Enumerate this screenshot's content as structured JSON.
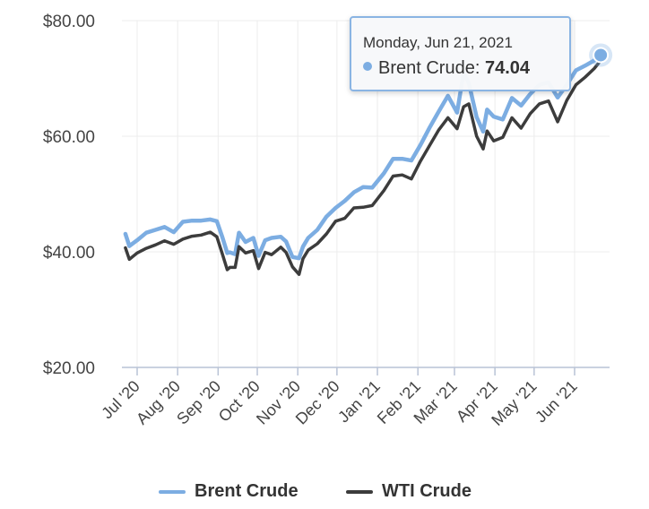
{
  "chart_data": {
    "type": "line",
    "title": "",
    "xlabel": "",
    "ylabel": "",
    "ylim": [
      20,
      80
    ],
    "y_ticks": [
      "$20.00",
      "$40.00",
      "$60.00",
      "$80.00"
    ],
    "y_tick_values": [
      20,
      40,
      60,
      80
    ],
    "x_ticks": [
      "Jul '20",
      "Aug '20",
      "Sep '20",
      "Oct '20",
      "Nov '20",
      "Dec '20",
      "Jan '21",
      "Feb '21",
      "Mar '21",
      "Apr '21",
      "May '21",
      "Jun '21"
    ],
    "x_tick_dates": [
      "2020-07-01",
      "2020-08-01",
      "2020-09-01",
      "2020-10-01",
      "2020-11-01",
      "2020-12-01",
      "2021-01-01",
      "2021-02-01",
      "2021-03-01",
      "2021-04-01",
      "2021-05-01",
      "2021-06-01"
    ],
    "grid": true,
    "legend_position": "bottom-center",
    "series": [
      {
        "name": "Brent Crude",
        "color": "#7cade2",
        "points": [
          [
            "2020-06-22",
            43.1
          ],
          [
            "2020-06-25",
            41.0
          ],
          [
            "2020-07-01",
            42.0
          ],
          [
            "2020-07-08",
            43.3
          ],
          [
            "2020-07-15",
            43.8
          ],
          [
            "2020-07-22",
            44.3
          ],
          [
            "2020-07-29",
            43.4
          ],
          [
            "2020-08-05",
            45.2
          ],
          [
            "2020-08-12",
            45.4
          ],
          [
            "2020-08-19",
            45.4
          ],
          [
            "2020-08-26",
            45.6
          ],
          [
            "2020-08-31",
            45.3
          ],
          [
            "2020-09-04",
            42.7
          ],
          [
            "2020-09-08",
            39.8
          ],
          [
            "2020-09-10",
            39.9
          ],
          [
            "2020-09-14",
            39.6
          ],
          [
            "2020-09-17",
            43.3
          ],
          [
            "2020-09-22",
            41.7
          ],
          [
            "2020-09-28",
            42.4
          ],
          [
            "2020-10-02",
            39.3
          ],
          [
            "2020-10-07",
            42.0
          ],
          [
            "2020-10-12",
            42.4
          ],
          [
            "2020-10-19",
            42.6
          ],
          [
            "2020-10-23",
            41.8
          ],
          [
            "2020-10-28",
            39.1
          ],
          [
            "2020-11-02",
            38.9
          ],
          [
            "2020-11-05",
            40.9
          ],
          [
            "2020-11-09",
            42.4
          ],
          [
            "2020-11-16",
            43.8
          ],
          [
            "2020-11-23",
            46.1
          ],
          [
            "2020-11-30",
            47.6
          ],
          [
            "2020-12-07",
            48.8
          ],
          [
            "2020-12-14",
            50.3
          ],
          [
            "2020-12-21",
            51.2
          ],
          [
            "2020-12-28",
            51.1
          ],
          [
            "2021-01-06",
            53.6
          ],
          [
            "2021-01-13",
            56.1
          ],
          [
            "2021-01-20",
            56.1
          ],
          [
            "2021-01-27",
            55.8
          ],
          [
            "2021-02-03",
            58.5
          ],
          [
            "2021-02-10",
            61.5
          ],
          [
            "2021-02-17",
            64.3
          ],
          [
            "2021-02-24",
            67.0
          ],
          [
            "2021-03-03",
            64.1
          ],
          [
            "2021-03-08",
            71.0
          ],
          [
            "2021-03-12",
            69.2
          ],
          [
            "2021-03-18",
            63.3
          ],
          [
            "2021-03-23",
            60.8
          ],
          [
            "2021-03-26",
            64.6
          ],
          [
            "2021-03-31",
            63.4
          ],
          [
            "2021-04-07",
            62.9
          ],
          [
            "2021-04-14",
            66.6
          ],
          [
            "2021-04-21",
            65.3
          ],
          [
            "2021-04-28",
            67.3
          ],
          [
            "2021-05-05",
            68.9
          ],
          [
            "2021-05-12",
            69.3
          ],
          [
            "2021-05-19",
            66.7
          ],
          [
            "2021-05-26",
            68.9
          ],
          [
            "2021-06-02",
            71.4
          ],
          [
            "2021-06-09",
            72.2
          ],
          [
            "2021-06-16",
            73.1
          ],
          [
            "2021-06-21",
            74.04
          ]
        ]
      },
      {
        "name": "WTI Crude",
        "color": "#3c3c3c",
        "points": [
          [
            "2020-06-22",
            40.7
          ],
          [
            "2020-06-25",
            38.7
          ],
          [
            "2020-07-01",
            39.8
          ],
          [
            "2020-07-08",
            40.6
          ],
          [
            "2020-07-15",
            41.2
          ],
          [
            "2020-07-22",
            41.9
          ],
          [
            "2020-07-29",
            41.3
          ],
          [
            "2020-08-05",
            42.2
          ],
          [
            "2020-08-12",
            42.7
          ],
          [
            "2020-08-19",
            42.9
          ],
          [
            "2020-08-26",
            43.4
          ],
          [
            "2020-08-31",
            42.6
          ],
          [
            "2020-09-04",
            39.8
          ],
          [
            "2020-09-08",
            36.9
          ],
          [
            "2020-09-10",
            37.3
          ],
          [
            "2020-09-14",
            37.3
          ],
          [
            "2020-09-17",
            40.9
          ],
          [
            "2020-09-22",
            39.8
          ],
          [
            "2020-09-28",
            40.2
          ],
          [
            "2020-10-02",
            37.1
          ],
          [
            "2020-10-07",
            39.9
          ],
          [
            "2020-10-12",
            39.5
          ],
          [
            "2020-10-19",
            40.8
          ],
          [
            "2020-10-23",
            39.9
          ],
          [
            "2020-10-28",
            37.4
          ],
          [
            "2020-11-02",
            36.1
          ],
          [
            "2020-11-05",
            38.8
          ],
          [
            "2020-11-09",
            40.3
          ],
          [
            "2020-11-16",
            41.4
          ],
          [
            "2020-11-23",
            43.1
          ],
          [
            "2020-11-30",
            45.3
          ],
          [
            "2020-12-07",
            45.8
          ],
          [
            "2020-12-14",
            47.6
          ],
          [
            "2020-12-21",
            47.7
          ],
          [
            "2020-12-28",
            48.0
          ],
          [
            "2021-01-06",
            50.6
          ],
          [
            "2021-01-13",
            53.1
          ],
          [
            "2021-01-20",
            53.3
          ],
          [
            "2021-01-27",
            52.6
          ],
          [
            "2021-02-03",
            55.7
          ],
          [
            "2021-02-10",
            58.4
          ],
          [
            "2021-02-17",
            61.1
          ],
          [
            "2021-02-24",
            63.2
          ],
          [
            "2021-03-03",
            61.3
          ],
          [
            "2021-03-08",
            65.1
          ],
          [
            "2021-03-12",
            65.6
          ],
          [
            "2021-03-18",
            60.0
          ],
          [
            "2021-03-23",
            57.8
          ],
          [
            "2021-03-26",
            60.9
          ],
          [
            "2021-03-31",
            59.2
          ],
          [
            "2021-04-07",
            59.8
          ],
          [
            "2021-04-14",
            63.2
          ],
          [
            "2021-04-21",
            61.4
          ],
          [
            "2021-04-28",
            63.9
          ],
          [
            "2021-05-05",
            65.6
          ],
          [
            "2021-05-12",
            66.1
          ],
          [
            "2021-05-19",
            62.5
          ],
          [
            "2021-05-26",
            66.2
          ],
          [
            "2021-06-02",
            68.9
          ],
          [
            "2021-06-09",
            70.2
          ],
          [
            "2021-06-16",
            71.7
          ],
          [
            "2021-06-21",
            73.1
          ]
        ]
      }
    ]
  },
  "tooltip": {
    "date": "Monday, Jun 21, 2021",
    "series_label": "Brent Crude: ",
    "value": "74.04",
    "color": "#7cade2"
  },
  "legend": {
    "items": [
      {
        "label": "Brent Crude",
        "color": "#7cade2"
      },
      {
        "label": "WTI Crude",
        "color": "#3c3c3c"
      }
    ]
  }
}
